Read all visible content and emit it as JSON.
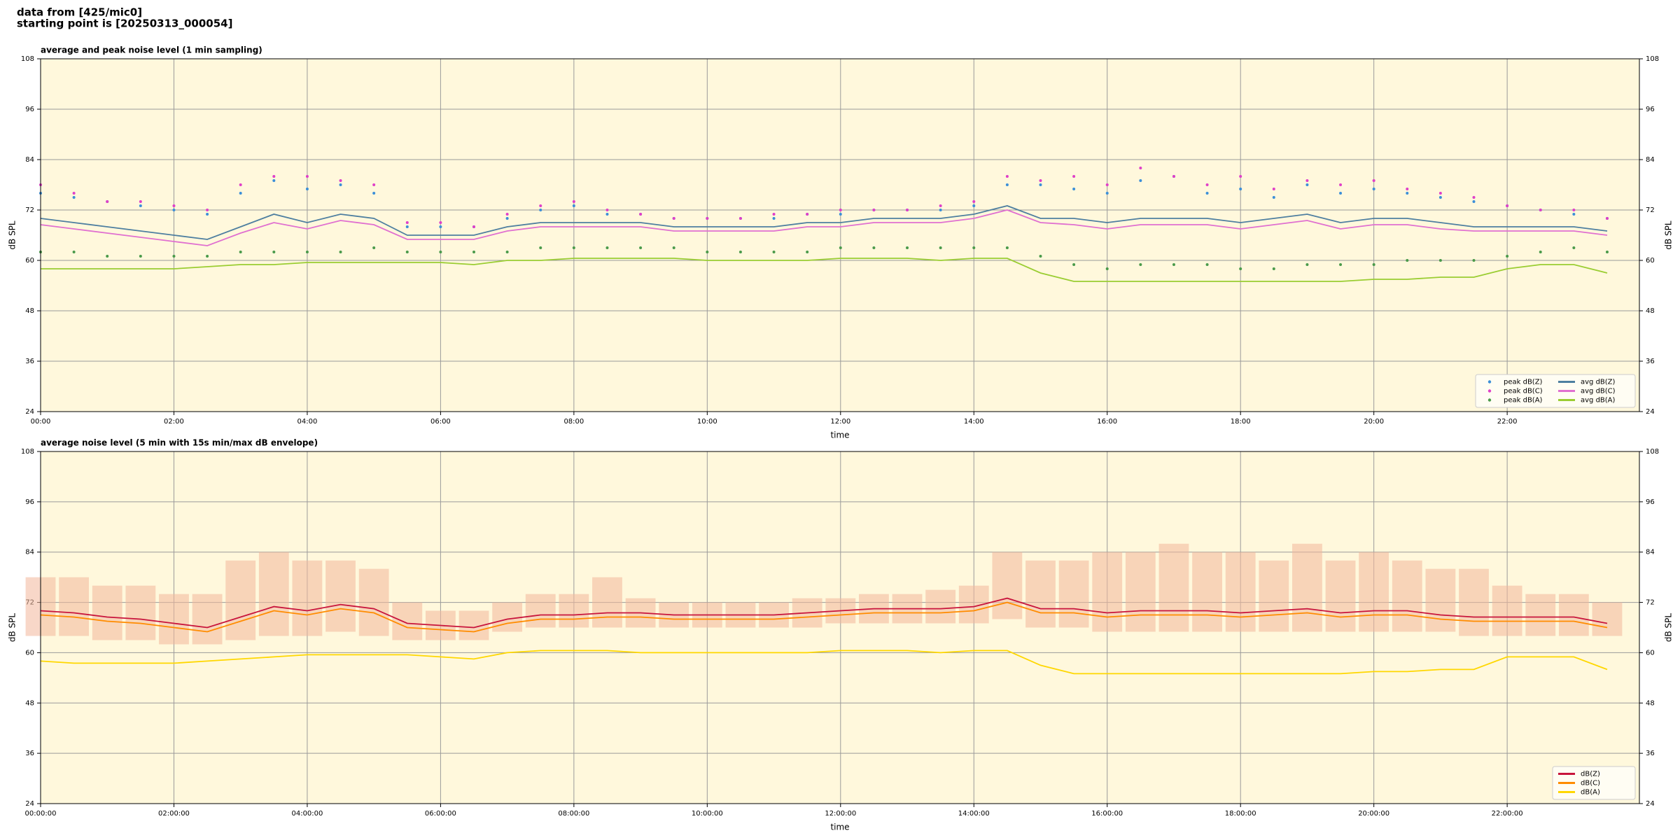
{
  "header": {
    "lines": [
      "data from [425/mic0]",
      "starting point is [20250313_000054]"
    ]
  },
  "chart_data": [
    {
      "type": "line",
      "title": "average and peak noise level (1 min sampling)",
      "xlabel": "time",
      "ylabel": "dB SPL",
      "x": [
        "00:00",
        "00:30",
        "01:00",
        "01:30",
        "02:00",
        "02:30",
        "03:00",
        "03:30",
        "04:00",
        "04:30",
        "05:00",
        "05:30",
        "06:00",
        "06:30",
        "07:00",
        "07:30",
        "08:00",
        "08:30",
        "09:00",
        "09:30",
        "10:00",
        "10:30",
        "11:00",
        "11:30",
        "12:00",
        "12:30",
        "13:00",
        "13:30",
        "14:00",
        "14:30",
        "15:00",
        "15:30",
        "16:00",
        "16:30",
        "17:00",
        "17:30",
        "18:00",
        "18:30",
        "19:00",
        "19:30",
        "20:00",
        "20:30",
        "21:00",
        "21:30",
        "22:00",
        "22:30",
        "23:00",
        "23:30"
      ],
      "xlim": [
        "00:00",
        "23:59"
      ],
      "xticks": [
        "00:00",
        "02:00",
        "04:00",
        "06:00",
        "08:00",
        "10:00",
        "12:00",
        "14:00",
        "16:00",
        "18:00",
        "20:00",
        "22:00"
      ],
      "ylim": [
        24,
        108
      ],
      "yticks": [
        24,
        36,
        48,
        60,
        72,
        84,
        96,
        108
      ],
      "grid": true,
      "background": "#fff8dc",
      "legend": "lower right",
      "legend_columns": 2,
      "series": [
        {
          "name": "peak dB(Z)",
          "style": "dots",
          "color": "#3c8fd8",
          "values": [
            76,
            75,
            74,
            73,
            72,
            71,
            76,
            79,
            77,
            78,
            76,
            68,
            68,
            68,
            70,
            72,
            73,
            71,
            71,
            70,
            70,
            70,
            70,
            71,
            71,
            72,
            72,
            72,
            73,
            78,
            78,
            77,
            76,
            79,
            80,
            76,
            77,
            75,
            78,
            76,
            77,
            76,
            75,
            74,
            73,
            72,
            71,
            70
          ]
        },
        {
          "name": "peak dB(C)",
          "style": "dots",
          "color": "#e040c8",
          "values": [
            78,
            76,
            74,
            74,
            73,
            72,
            78,
            80,
            80,
            79,
            78,
            69,
            69,
            68,
            71,
            73,
            74,
            72,
            71,
            70,
            70,
            70,
            71,
            71,
            72,
            72,
            72,
            73,
            74,
            80,
            79,
            80,
            78,
            82,
            80,
            78,
            80,
            77,
            79,
            78,
            79,
            77,
            76,
            75,
            73,
            72,
            72,
            70
          ]
        },
        {
          "name": "peak dB(A)",
          "style": "dots",
          "color": "#4a9a4a",
          "values": [
            62,
            62,
            61,
            61,
            61,
            61,
            62,
            62,
            62,
            62,
            63,
            62,
            62,
            62,
            62,
            63,
            63,
            63,
            63,
            63,
            62,
            62,
            62,
            62,
            63,
            63,
            63,
            63,
            63,
            63,
            61,
            59,
            58,
            59,
            59,
            59,
            58,
            58,
            59,
            59,
            59,
            60,
            60,
            60,
            61,
            62,
            63,
            62
          ]
        },
        {
          "name": "avg dB(Z)",
          "style": "line",
          "color": "#4e7fa0",
          "values": [
            70,
            69,
            68,
            67,
            66,
            65,
            68,
            71,
            69,
            71,
            70,
            66,
            66,
            66,
            68,
            69,
            69,
            69,
            69,
            68,
            68,
            68,
            68,
            69,
            69,
            70,
            70,
            70,
            71,
            73,
            70,
            70,
            69,
            70,
            70,
            70,
            69,
            70,
            71,
            69,
            70,
            70,
            69,
            68,
            68,
            68,
            68,
            67
          ]
        },
        {
          "name": "avg dB(C)",
          "style": "line",
          "color": "#e070d0",
          "values": [
            68.5,
            67.5,
            66.5,
            65.5,
            64.5,
            63.5,
            66.5,
            69,
            67.5,
            69.5,
            68.5,
            65,
            65,
            65,
            67,
            68,
            68,
            68,
            68,
            67,
            67,
            67,
            67,
            68,
            68,
            69,
            69,
            69,
            70,
            72,
            69,
            68.5,
            67.5,
            68.5,
            68.5,
            68.5,
            67.5,
            68.5,
            69.5,
            67.5,
            68.5,
            68.5,
            67.5,
            67,
            67,
            67,
            67,
            66
          ]
        },
        {
          "name": "avg dB(A)",
          "style": "line",
          "color": "#9acd32",
          "values": [
            58,
            58,
            58,
            58,
            58,
            58.5,
            59,
            59,
            59.5,
            59.5,
            59.5,
            59.5,
            59.5,
            59,
            60,
            60,
            60.5,
            60.5,
            60.5,
            60.5,
            60,
            60,
            60,
            60,
            60.5,
            60.5,
            60.5,
            60,
            60.5,
            60.5,
            57,
            55,
            55,
            55,
            55,
            55,
            55,
            55,
            55,
            55,
            55.5,
            55.5,
            56,
            56,
            58,
            59,
            59,
            57
          ]
        }
      ]
    },
    {
      "type": "line",
      "title": "average noise level (5 min with 15s min/max dB envelope)",
      "xlabel": "time",
      "ylabel": "dB SPL",
      "x": [
        "00:00:00",
        "00:30:00",
        "01:00:00",
        "01:30:00",
        "02:00:00",
        "02:30:00",
        "03:00:00",
        "03:30:00",
        "04:00:00",
        "04:30:00",
        "05:00:00",
        "05:30:00",
        "06:00:00",
        "06:30:00",
        "07:00:00",
        "07:30:00",
        "08:00:00",
        "08:30:00",
        "09:00:00",
        "09:30:00",
        "10:00:00",
        "10:30:00",
        "11:00:00",
        "11:30:00",
        "12:00:00",
        "12:30:00",
        "13:00:00",
        "13:30:00",
        "14:00:00",
        "14:30:00",
        "15:00:00",
        "15:30:00",
        "16:00:00",
        "16:30:00",
        "17:00:00",
        "17:30:00",
        "18:00:00",
        "18:30:00",
        "19:00:00",
        "19:30:00",
        "20:00:00",
        "20:30:00",
        "21:00:00",
        "21:30:00",
        "22:00:00",
        "22:30:00",
        "23:00:00",
        "23:30:00"
      ],
      "xlim": [
        "00:00:00",
        "23:59:00"
      ],
      "xticks": [
        "00:00:00",
        "02:00:00",
        "04:00:00",
        "06:00:00",
        "08:00:00",
        "10:00:00",
        "12:00:00",
        "14:00:00",
        "16:00:00",
        "18:00:00",
        "20:00:00",
        "22:00:00"
      ],
      "ylim": [
        24,
        108
      ],
      "yticks": [
        24,
        36,
        48,
        60,
        72,
        84,
        96,
        108
      ],
      "grid": true,
      "background": "#fff8dc",
      "legend": "lower right",
      "legend_columns": 1,
      "envelope": {
        "color": "#f4b89c",
        "min": [
          64,
          64,
          63,
          63,
          62,
          62,
          63,
          64,
          64,
          65,
          64,
          63,
          63,
          63,
          65,
          66,
          66,
          66,
          66,
          66,
          66,
          66,
          66,
          66,
          67,
          67,
          67,
          67,
          67,
          68,
          66,
          66,
          65,
          65,
          65,
          65,
          65,
          65,
          65,
          65,
          65,
          65,
          65,
          64,
          64,
          64,
          64,
          64
        ],
        "max": [
          78,
          78,
          76,
          76,
          74,
          74,
          82,
          84,
          82,
          82,
          80,
          72,
          70,
          70,
          72,
          74,
          74,
          78,
          73,
          72,
          72,
          72,
          72,
          73,
          73,
          74,
          74,
          75,
          76,
          84,
          82,
          82,
          84,
          84,
          86,
          84,
          84,
          82,
          86,
          82,
          84,
          82,
          80,
          80,
          76,
          74,
          74,
          72
        ]
      },
      "series": [
        {
          "name": "dB(Z)",
          "style": "line",
          "color": "#c8143c",
          "values": [
            70,
            69.5,
            68.5,
            68,
            67,
            66,
            68.5,
            71,
            70,
            71.5,
            70.5,
            67,
            66.5,
            66,
            68,
            69,
            69,
            69.5,
            69.5,
            69,
            69,
            69,
            69,
            69.5,
            70,
            70.5,
            70.5,
            70.5,
            71,
            73,
            70.5,
            70.5,
            69.5,
            70,
            70,
            70,
            69.5,
            70,
            70.5,
            69.5,
            70,
            70,
            69,
            68.5,
            68.5,
            68.5,
            68.5,
            67
          ]
        },
        {
          "name": "dB(C)",
          "style": "line",
          "color": "#ff8c00",
          "values": [
            69,
            68.5,
            67.5,
            67,
            66,
            65,
            67.5,
            70,
            69,
            70.5,
            69.5,
            66,
            65.5,
            65,
            67,
            68,
            68,
            68.5,
            68.5,
            68,
            68,
            68,
            68,
            68.5,
            69,
            69.5,
            69.5,
            69.5,
            70,
            72,
            69.5,
            69.5,
            68.5,
            69,
            69,
            69,
            68.5,
            69,
            69.5,
            68.5,
            69,
            69,
            68,
            67.5,
            67.5,
            67.5,
            67.5,
            66
          ]
        },
        {
          "name": "dB(A)",
          "style": "line",
          "color": "#ffd700",
          "values": [
            58,
            57.5,
            57.5,
            57.5,
            57.5,
            58,
            58.5,
            59,
            59.5,
            59.5,
            59.5,
            59.5,
            59,
            58.5,
            60,
            60.5,
            60.5,
            60.5,
            60,
            60,
            60,
            60,
            60,
            60,
            60.5,
            60.5,
            60.5,
            60,
            60.5,
            60.5,
            57,
            55,
            55,
            55,
            55,
            55,
            55,
            55,
            55,
            55,
            55.5,
            55.5,
            56,
            56,
            59,
            59,
            59,
            56
          ]
        }
      ]
    }
  ]
}
